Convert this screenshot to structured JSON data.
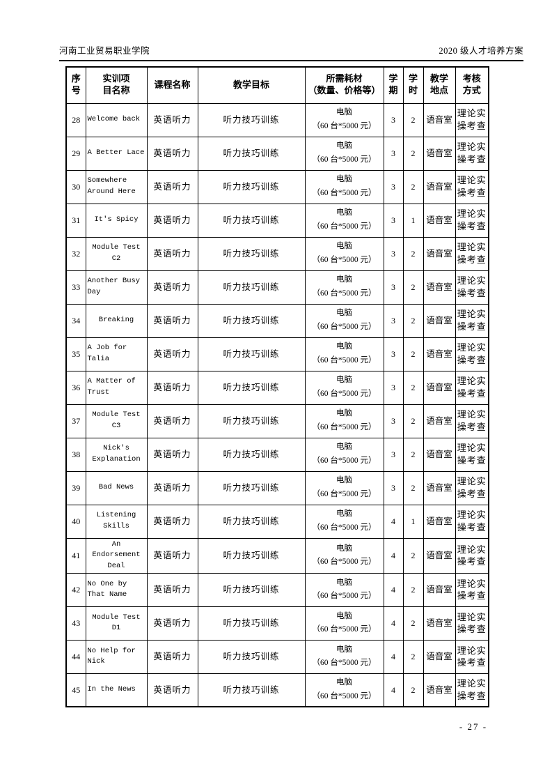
{
  "page": {
    "header_left": "河南工业贸易职业学院",
    "header_right": "2020 级人才培养方案",
    "footer_page_number": "- 27 -"
  },
  "table": {
    "columns": [
      {
        "key": "seq",
        "label": "序号"
      },
      {
        "key": "name",
        "label": "实训项\n目名称"
      },
      {
        "key": "course",
        "label": "课程名称"
      },
      {
        "key": "goal",
        "label": "教学目标"
      },
      {
        "key": "materials",
        "label": "所需耗材\n（数量、价格等）"
      },
      {
        "key": "semester",
        "label": "学\n期"
      },
      {
        "key": "hours",
        "label": "学\n时"
      },
      {
        "key": "location",
        "label": "教学\n地点"
      },
      {
        "key": "assessment",
        "label": "考核\n方式"
      }
    ],
    "rows": [
      {
        "seq": "28",
        "name": "Welcome back",
        "name_align": "left",
        "course": "英语听力",
        "goal": "听力技巧训练",
        "materials": "电脑\n（60 台*5000 元）",
        "semester": "3",
        "hours": "2",
        "location": "语音室",
        "assessment": "理论实操考查"
      },
      {
        "seq": "29",
        "name": "A Better Lace",
        "name_align": "left",
        "course": "英语听力",
        "goal": "听力技巧训练",
        "materials": "电脑\n（60 台*5000 元）",
        "semester": "3",
        "hours": "2",
        "location": "语音室",
        "assessment": "理论实操考查"
      },
      {
        "seq": "30",
        "name": "Somewhere\nAround Here",
        "name_align": "left",
        "course": "英语听力",
        "goal": "听力技巧训练",
        "materials": "电脑\n（60 台*5000 元）",
        "semester": "3",
        "hours": "2",
        "location": "语音室",
        "assessment": "理论实操考查"
      },
      {
        "seq": "31",
        "name": "It's Spicy",
        "name_align": "center",
        "course": "英语听力",
        "goal": "听力技巧训练",
        "materials": "电脑\n（60 台*5000 元）",
        "semester": "3",
        "hours": "1",
        "location": "语音室",
        "assessment": "理论实操考查"
      },
      {
        "seq": "32",
        "name": "Module Test\nC2",
        "name_align": "center",
        "course": "英语听力",
        "goal": "听力技巧训练",
        "materials": "电脑\n（60 台*5000 元）",
        "semester": "3",
        "hours": "2",
        "location": "语音室",
        "assessment": "理论实操考查"
      },
      {
        "seq": "33",
        "name": "Another Busy\nDay",
        "name_align": "left",
        "course": "英语听力",
        "goal": "听力技巧训练",
        "materials": "电脑\n（60 台*5000 元）",
        "semester": "3",
        "hours": "2",
        "location": "语音室",
        "assessment": "理论实操考查"
      },
      {
        "seq": "34",
        "name": "Breaking",
        "name_align": "center",
        "course": "英语听力",
        "goal": "听力技巧训练",
        "materials": "电脑\n（60 台*5000 元）",
        "semester": "3",
        "hours": "2",
        "location": "语音室",
        "assessment": "理论实操考查"
      },
      {
        "seq": "35",
        "name": "A Job for\nTalia",
        "name_align": "left",
        "course": "英语听力",
        "goal": "听力技巧训练",
        "materials": "电脑\n（60 台*5000 元）",
        "semester": "3",
        "hours": "2",
        "location": "语音室",
        "assessment": "理论实操考查"
      },
      {
        "seq": "36",
        "name": "A Matter of\nTrust",
        "name_align": "left",
        "course": "英语听力",
        "goal": "听力技巧训练",
        "materials": "电脑\n（60 台*5000 元）",
        "semester": "3",
        "hours": "2",
        "location": "语音室",
        "assessment": "理论实操考查"
      },
      {
        "seq": "37",
        "name": "Module Test\nC3",
        "name_align": "center",
        "course": "英语听力",
        "goal": "听力技巧训练",
        "materials": "电脑\n（60 台*5000 元）",
        "semester": "3",
        "hours": "2",
        "location": "语音室",
        "assessment": "理论实操考查"
      },
      {
        "seq": "38",
        "name": "Nick's\nExplanation",
        "name_align": "center",
        "course": "英语听力",
        "goal": "听力技巧训练",
        "materials": "电脑\n（60 台*5000 元）",
        "semester": "3",
        "hours": "2",
        "location": "语音室",
        "assessment": "理论实操考查"
      },
      {
        "seq": "39",
        "name": "Bad News",
        "name_align": "center",
        "course": "英语听力",
        "goal": "听力技巧训练",
        "materials": "电脑\n（60 台*5000 元）",
        "semester": "3",
        "hours": "2",
        "location": "语音室",
        "assessment": "理论实操考查"
      },
      {
        "seq": "40",
        "name": "Listening\nSkills",
        "name_align": "center",
        "course": "英语听力",
        "goal": "听力技巧训练",
        "materials": "电脑\n（60 台*5000 元）",
        "semester": "4",
        "hours": "1",
        "location": "语音室",
        "assessment": "理论实操考查"
      },
      {
        "seq": "41",
        "name": "An\nEndorsement\nDeal",
        "name_align": "center",
        "course": "英语听力",
        "goal": "听力技巧训练",
        "materials": "电脑\n（60 台*5000 元）",
        "semester": "4",
        "hours": "2",
        "location": "语音室",
        "assessment": "理论实操考查"
      },
      {
        "seq": "42",
        "name": "No One by\nThat Name",
        "name_align": "left",
        "course": "英语听力",
        "goal": "听力技巧训练",
        "materials": "电脑\n（60 台*5000 元）",
        "semester": "4",
        "hours": "2",
        "location": "语音室",
        "assessment": "理论实操考查"
      },
      {
        "seq": "43",
        "name": "Module Test\nD1",
        "name_align": "center",
        "course": "英语听力",
        "goal": "听力技巧训练",
        "materials": "电脑\n（60 台*5000 元）",
        "semester": "4",
        "hours": "2",
        "location": "语音室",
        "assessment": "理论实操考查"
      },
      {
        "seq": "44",
        "name": "No Help for\nNick",
        "name_align": "left",
        "course": "英语听力",
        "goal": "听力技巧训练",
        "materials": "电脑\n（60 台*5000 元）",
        "semester": "4",
        "hours": "2",
        "location": "语音室",
        "assessment": "理论实操考查"
      },
      {
        "seq": "45",
        "name": "In the News",
        "name_align": "left",
        "course": "英语听力",
        "goal": "听力技巧训练",
        "materials": "电脑\n（60 台*5000 元）",
        "semester": "4",
        "hours": "2",
        "location": "语音室",
        "assessment": "理论实操考查"
      }
    ]
  }
}
